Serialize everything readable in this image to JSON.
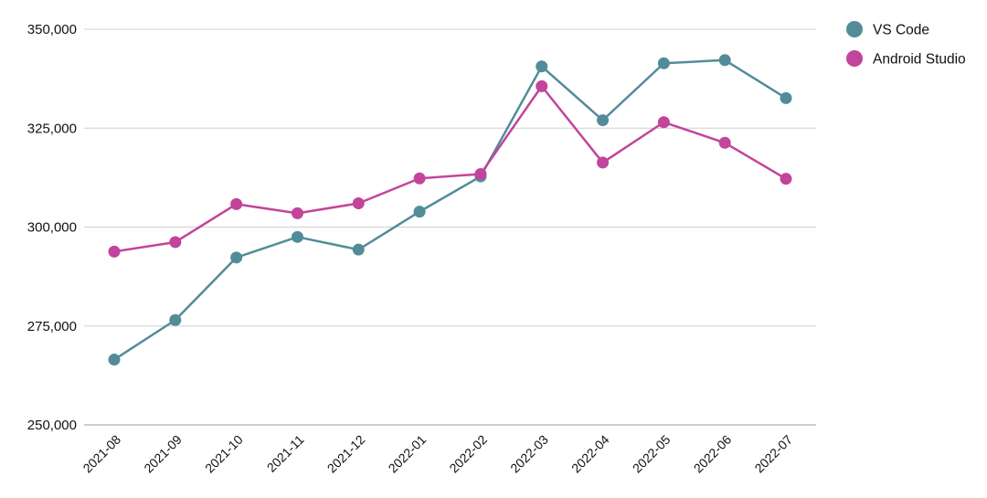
{
  "chart_data": {
    "type": "line",
    "title": "",
    "xlabel": "",
    "ylabel": "",
    "x": [
      "2021-08",
      "2021-09",
      "2021-10",
      "2021-11",
      "2021-12",
      "2022-01",
      "2022-02",
      "2022-03",
      "2022-04",
      "2022-05",
      "2022-06",
      "2022-07"
    ],
    "ylim": [
      250000,
      350000
    ],
    "yticks": [
      250000,
      275000,
      300000,
      325000,
      350000
    ],
    "ytick_labels": [
      "250,000",
      "275,000",
      "300,000",
      "325,000",
      "350,000"
    ],
    "grid": true,
    "legend_position": "top-right",
    "series": [
      {
        "name": "VS Code",
        "color": "#538c99",
        "values": [
          266500,
          276500,
          292300,
          297500,
          294300,
          303900,
          312800,
          340600,
          327000,
          341400,
          342200,
          332600
        ]
      },
      {
        "name": "Android Studio",
        "color": "#c2449b",
        "values": [
          293800,
          296200,
          305800,
          303500,
          306000,
          312300,
          313400,
          335600,
          316300,
          326500,
          321300,
          312200
        ]
      }
    ]
  }
}
